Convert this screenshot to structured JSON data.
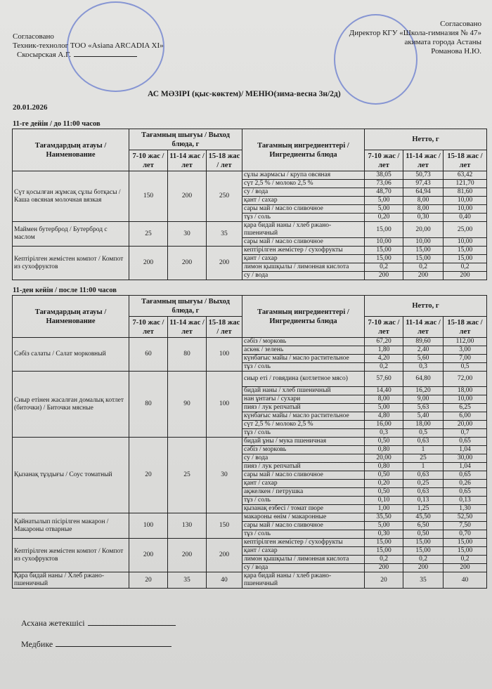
{
  "header": {
    "left": [
      "Согласовано",
      "Техник-технолог ТОО «Asiana ARCADIA XI»",
      "Скосырская А.Г."
    ],
    "right": [
      "Согласовано",
      "Директор КГУ «Школа-гимназия № 47»",
      "акимата города Астаны",
      "Романова Н.Ю."
    ],
    "title": "АС  МӘЗІРІ (қыс-көктем)/ МЕНЮ(зима-весна 3н/2д)",
    "date": "20.01.2026"
  },
  "columns": {
    "dish": "Тағамдардың атауы / Наименование",
    "output": "Тағамның шығуы / Выход блюда, г",
    "ingredients": "Тағамның ингредиенттері / Ингредиенты блюда",
    "netto": "Нетто, г",
    "ages": [
      "7-10 жас / лет",
      "11-14 жас / лет",
      "15-18 жас / лет"
    ]
  },
  "sections": [
    {
      "title": "11-ге дейін / до 11:00 часов",
      "dishes": [
        {
          "name": "Сүт қосылған жұмсақ сұлы ботқасы / Каша овсяная молочная вязкая",
          "output": [
            "150",
            "200",
            "250"
          ],
          "items": [
            [
              "сұлы жармасы / крупа овсяная",
              "38,05",
              "50,73",
              "63,42"
            ],
            [
              "сүт 2,5 % / молоко 2,5 %",
              "73,06",
              "97,43",
              "121,70"
            ],
            [
              "су / вода",
              "48,70",
              "64,94",
              "81,60"
            ],
            [
              "қант / сахар",
              "5,00",
              "8,00",
              "10,00"
            ],
            [
              "сары май / масло сливочное",
              "5,00",
              "8,00",
              "10,00"
            ],
            [
              "тұз / соль",
              "0,20",
              "0,30",
              "0,40"
            ]
          ]
        },
        {
          "name": "Маймен бутерброд / Бутерброд с маслом",
          "output": [
            "25",
            "30",
            "35"
          ],
          "items": [
            [
              "қара бидай наны / хлеб ржано-пшеничный",
              "15,00",
              "20,00",
              "25,00"
            ],
            [
              "сары май / масло сливочное",
              "10,00",
              "10,00",
              "10,00"
            ]
          ]
        },
        {
          "name": "Кептірілген жемістен компот / Компот из сухофруктов",
          "output": [
            "200",
            "200",
            "200"
          ],
          "items": [
            [
              "кептірілген жемістер / сухофрукты",
              "15,00",
              "15,00",
              "15,00"
            ],
            [
              "қант / сахар",
              "15,00",
              "15,00",
              "15,00"
            ],
            [
              "лимон қышқылы /  лимонная кислота",
              "0,2",
              "0,2",
              "0,2"
            ],
            [
              "су / вода",
              "200",
              "200",
              "200"
            ]
          ]
        }
      ]
    },
    {
      "title": "11-ден кейін / после 11:00 часов",
      "dishes": [
        {
          "name": "Сәбіз салаты / Салат морковный",
          "output": [
            "60",
            "80",
            "100"
          ],
          "items": [
            [
              "сәбіз / морковь",
              "67,20",
              "89,60",
              "112,00"
            ],
            [
              "аскөк / зелень",
              "1,80",
              "2,40",
              "3,00"
            ],
            [
              "күнбағыс майы / масло растительное",
              "4,20",
              "5,60",
              "7,00"
            ],
            [
              "тұз / соль",
              "0,2",
              "0,3",
              "0,5"
            ]
          ]
        },
        {
          "name": "Сиыр етінен жасалған домалық котлет (биточки) / Биточки мясные",
          "output": [
            "80",
            "90",
            "100"
          ],
          "items": [
            [
              "сиыр еті / говядина (котлетное мясо)",
              "57,60",
              "64,80",
              "72,00"
            ],
            [
              "бидай наны / хлеб пшеничный",
              "14,40",
              "16,20",
              "18,00"
            ],
            [
              "нан ұнтағы / сухари",
              "8,00",
              "9,00",
              "10,00"
            ],
            [
              "пияз / лук репчатый",
              "5,00",
              "5,63",
              "6,25"
            ],
            [
              "күнбағыс майы / масло растительное",
              "4,80",
              "5,40",
              "6,00"
            ],
            [
              "сүт 2,5 % / молоко 2,5 %",
              "16,00",
              "18,00",
              "20,00"
            ],
            [
              "тұз / соль",
              "0,3",
              "0,5",
              "0,7"
            ]
          ]
        },
        {
          "name": "Қызанақ тұздығы / Соус томатный",
          "output": [
            "20",
            "25",
            "30"
          ],
          "items": [
            [
              "бидай ұны / мука пшеничная",
              "0,50",
              "0,63",
              "0,65"
            ],
            [
              "сәбіз / морковь",
              "0,80",
              "1",
              "1,04"
            ],
            [
              "су / вода",
              "20,00",
              "25",
              "30,00"
            ],
            [
              "пияз / лук репчатый",
              "0,80",
              "1",
              "1,04"
            ],
            [
              "сары май / масло сливочное",
              "0,50",
              "0,63",
              "0,65"
            ],
            [
              "қант / сахар",
              "0,20",
              "0,25",
              "0,26"
            ],
            [
              "ақжелкен / петрушка",
              "0,50",
              "0,63",
              "0,65"
            ],
            [
              "тұз / соль",
              "0,10",
              "0,13",
              "0,13"
            ],
            [
              "қызанақ езбесі / томат пюре",
              "1,00",
              "1,25",
              "1,30"
            ]
          ]
        },
        {
          "name": "Қайнатылып пісірілген макарон / Макароны отварные",
          "output": [
            "100",
            "130",
            "150"
          ],
          "items": [
            [
              "макароны өнім / макаронные",
              "35,50",
              "45,50",
              "52,50"
            ],
            [
              "сары май / масло сливочное",
              "5,00",
              "6,50",
              "7,50"
            ],
            [
              "тұз / соль",
              "0,30",
              "0,50",
              "0,70"
            ]
          ]
        },
        {
          "name": "Кептірілген жемістен компот / Компот из сухофруктов",
          "output": [
            "200",
            "200",
            "200"
          ],
          "items": [
            [
              "кептірілген жемістер / сухофрукты",
              "15,00",
              "15,00",
              "15,00"
            ],
            [
              "қант / сахар",
              "15,00",
              "15,00",
              "15,00"
            ],
            [
              "лимон қышқылы /  лимонная кислота",
              "0,2",
              "0,2",
              "0,2"
            ],
            [
              "су / вода",
              "200",
              "200",
              "200"
            ]
          ]
        },
        {
          "name": "Қара бидай наны / Хлеб ржано-пшеничный",
          "output": [
            "20",
            "35",
            "40"
          ],
          "items": [
            [
              "қара бидай наны / хлеб ржано-пшеничный",
              "20",
              "35",
              "40"
            ]
          ]
        }
      ]
    }
  ],
  "footer": {
    "cook": "Асхана жетекшісі",
    "nurse": "Медбике"
  },
  "colors": {
    "stamp": "#4a63c9",
    "ink": "#1a1a1a"
  }
}
